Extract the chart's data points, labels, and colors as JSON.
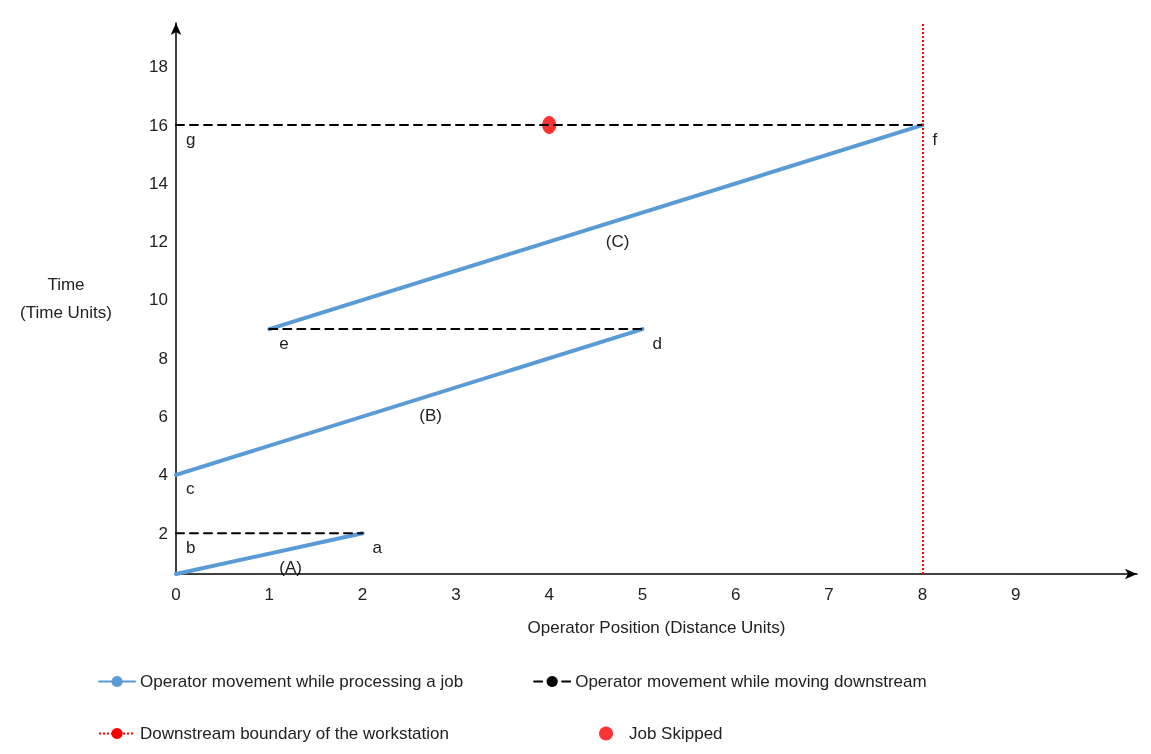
{
  "chart_data": {
    "type": "line",
    "xlabel": "Operator Position (Distance Units)",
    "ylabel": "Time\n(Time Units)",
    "xlim": [
      0,
      10.3
    ],
    "ylim": [
      0.6,
      19.5
    ],
    "xticks": [
      0,
      1,
      2,
      3,
      4,
      5,
      6,
      7,
      8,
      9
    ],
    "yticks": [
      2,
      4,
      6,
      8,
      10,
      12,
      14,
      16,
      18
    ],
    "grid": false,
    "legend": "bottom",
    "marker": "none",
    "series": [
      {
        "name": "Operator movement while processing a job",
        "color": "#5b9bd5",
        "line_style": "solid",
        "x": [
          0,
          2,
          null,
          0,
          5,
          null,
          1,
          8
        ],
        "values": [
          0.6,
          2,
          null,
          4,
          9,
          null,
          9,
          16
        ]
      },
      {
        "name": "Operator movement while moving downstream",
        "color": "#000000",
        "line_style": "dashed",
        "x": [
          0,
          2,
          null,
          1,
          5,
          null,
          0,
          8
        ],
        "values": [
          2,
          2,
          null,
          9,
          9,
          null,
          16,
          16
        ]
      },
      {
        "name": "Job Skipped",
        "type": "scatter",
        "marker": "circle",
        "color": "#ff0000",
        "x": [
          4
        ],
        "values": [
          16
        ]
      }
    ],
    "ref_lines": [
      {
        "axis": "x",
        "value": 8,
        "label": "Downstream boundary of the workstation",
        "color": "#ff0000",
        "line_style": "dotted"
      }
    ],
    "annotations": [
      {
        "text": "g",
        "x": 0,
        "y": 16
      },
      {
        "text": "f",
        "x": 8,
        "y": 16
      },
      {
        "text": "(C)",
        "x": 4.5,
        "y": 12.5
      },
      {
        "text": "e",
        "x": 1,
        "y": 9
      },
      {
        "text": "d",
        "x": 5,
        "y": 9
      },
      {
        "text": "(B)",
        "x": 2.5,
        "y": 6.5
      },
      {
        "text": "c",
        "x": 0,
        "y": 4
      },
      {
        "text": "b",
        "x": 0,
        "y": 2
      },
      {
        "text": "a",
        "x": 2,
        "y": 2
      },
      {
        "text": "(A)",
        "x": 1,
        "y": 1.3
      }
    ]
  }
}
